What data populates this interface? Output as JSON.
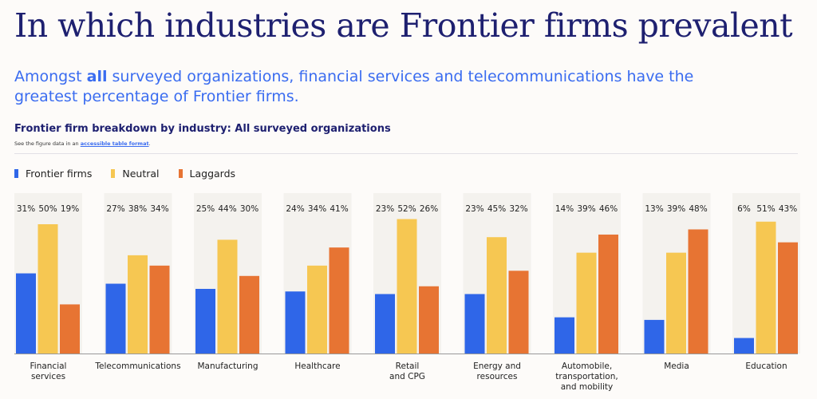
{
  "header": {
    "title": "In which industries are Frontier firms prevalent",
    "subtitle_pre": "Amongst ",
    "subtitle_bold": "all",
    "subtitle_post": " surveyed organizations, financial services and telecommunications have the greatest percentage of Frontier firms."
  },
  "note": {
    "text": "See the figure data in an ",
    "link": "accessible table format",
    "end": "."
  },
  "chart_data": {
    "type": "bar",
    "title": "Frontier firm breakdown by industry: All surveyed organizations",
    "categories": [
      [
        "Financial",
        "services"
      ],
      [
        "Telecommunications"
      ],
      [
        "Manufacturing"
      ],
      [
        "Healthcare"
      ],
      [
        "Retail",
        "and CPG"
      ],
      [
        "Energy and",
        "resources"
      ],
      [
        "Automobile,",
        "transportation,",
        "and mobility"
      ],
      [
        "Media"
      ],
      [
        "Education"
      ]
    ],
    "series": [
      {
        "name": "Frontier firms",
        "color": "#2f66e8",
        "values": [
          31,
          27,
          25,
          24,
          23,
          23,
          14,
          13,
          6
        ]
      },
      {
        "name": "Neutral",
        "color": "#f6c752",
        "values": [
          50,
          38,
          44,
          34,
          52,
          45,
          39,
          39,
          51
        ]
      },
      {
        "name": "Laggards",
        "color": "#e77433",
        "values": [
          19,
          34,
          30,
          41,
          26,
          32,
          46,
          48,
          43
        ]
      }
    ],
    "ylim": [
      0,
      55
    ],
    "value_suffix": "%",
    "legend": "top-left",
    "grid": false
  }
}
